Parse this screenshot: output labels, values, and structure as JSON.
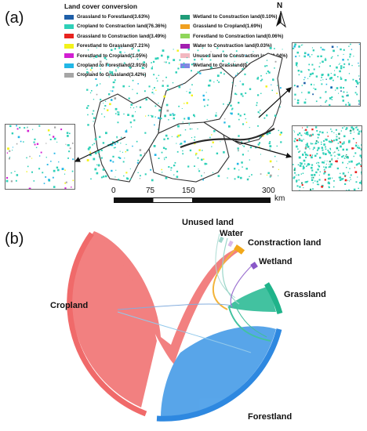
{
  "panel_a_label": "(a)",
  "panel_b_label": "(b)",
  "legend": {
    "title": "Land cover conversion",
    "items": [
      {
        "label": "Grassland to Forestland(3.63%)",
        "color": "#1f5fa8"
      },
      {
        "label": "Cropland to Constraction land(76.36%)",
        "color": "#2fd0b8"
      },
      {
        "label": "Grassland to Constraction land(3.49%)",
        "color": "#e8231f"
      },
      {
        "label": "Forestland to Grassland(7.21%)",
        "color": "#f2f21a"
      },
      {
        "label": "Forestland to Cropland(1.05%)",
        "color": "#d21ed2"
      },
      {
        "label": "Cropland to Forestland(2.91%)",
        "color": "#22b7e6"
      },
      {
        "label": "Cropland to Grassland(3.42%)",
        "color": "#a6a6a6"
      },
      {
        "label": "Wetland to Constraction land(0.10%)",
        "color": "#1f9c78"
      },
      {
        "label": "Grassland to Cropland(1.69%)",
        "color": "#f0a020"
      },
      {
        "label": "Forestland to Constraction land(0.06%)",
        "color": "#8fd65a"
      },
      {
        "label": "Water to Constraction land(0.03%)",
        "color": "#a21fb0"
      },
      {
        "label": "Unused land to Constraction land(0.04%)",
        "color": "#f2b8c0"
      },
      {
        "label": "Wetland to Grassland(0.006%)",
        "color": "#7f86e6"
      }
    ]
  },
  "north_label": "N",
  "scalebar": {
    "ticks": [
      "0",
      "75",
      "150",
      "300"
    ],
    "unit": "km"
  },
  "chord": {
    "nodes": [
      {
        "label": "Unused land",
        "color": "#9fd6cc"
      },
      {
        "label": "Water",
        "color": "#d9b8e8"
      },
      {
        "label": "Constraction land",
        "color": "#f2a81a"
      },
      {
        "label": "Wetland",
        "color": "#8a58c8"
      },
      {
        "label": "Grassland",
        "color": "#1fb38a"
      },
      {
        "label": "Forestland",
        "color": "#2e88e0"
      },
      {
        "label": "Cropland",
        "color": "#f06a6a"
      }
    ]
  }
}
